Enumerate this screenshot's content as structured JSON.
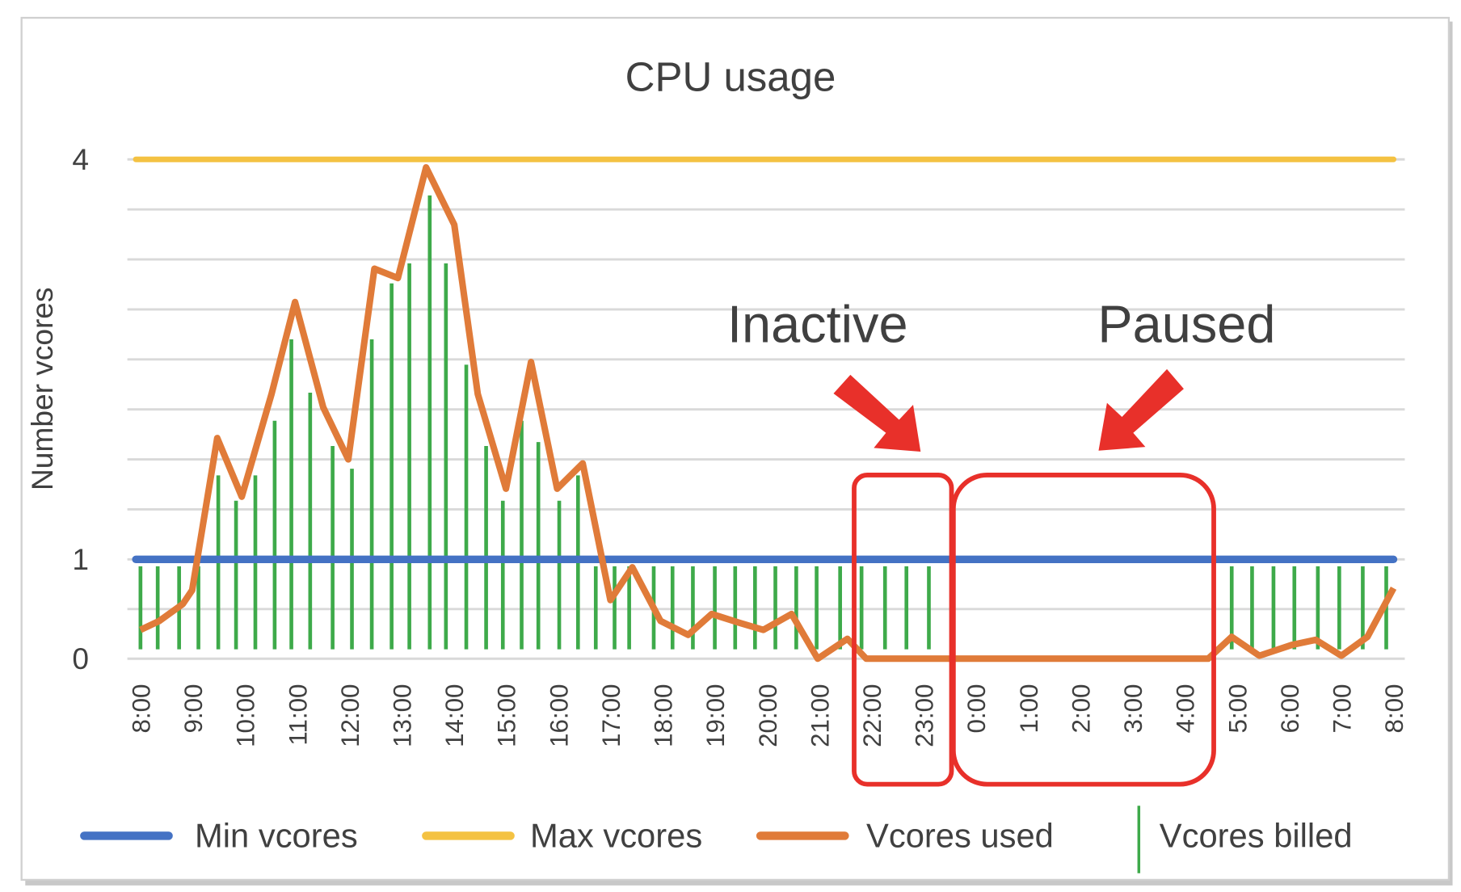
{
  "chart_data": {
    "type": "line",
    "title": "CPU usage",
    "ylabel": "Number vcores",
    "xlabel": "",
    "x_unit": "hours since 8:00",
    "xlim": [
      0,
      24
    ],
    "ylim": [
      0,
      4
    ],
    "y_ticks": [
      {
        "value": 0,
        "label": "0"
      },
      {
        "value": 1,
        "label": "1"
      },
      {
        "value": 4,
        "label": "4"
      }
    ],
    "y_gridlines": [
      0,
      0.5,
      1,
      1.375,
      1.75,
      2.125,
      2.5,
      2.875,
      3.25,
      3.625,
      4
    ],
    "x_tick_labels": [
      "8:00",
      "9:00",
      "10:00",
      "11:00",
      "12:00",
      "13:00",
      "14:00",
      "15:00",
      "16:00",
      "17:00",
      "18:00",
      "19:00",
      "20:00",
      "21:00",
      "22:00",
      "23:00",
      "0:00",
      "1:00",
      "2:00",
      "3:00",
      "4:00",
      "5:00",
      "6:00",
      "7:00",
      "8:00"
    ],
    "grid": true,
    "legend_position": "bottom",
    "series": [
      {
        "name": "Min vcores",
        "type": "line",
        "color": "#4472C4",
        "x": [
          0,
          24
        ],
        "values": [
          1,
          1
        ]
      },
      {
        "name": "Max vcores",
        "type": "line",
        "color": "#F4C242",
        "x": [
          0,
          24
        ],
        "values": [
          4,
          4
        ]
      },
      {
        "name": "Vcores used",
        "type": "line",
        "color": "#E07B39",
        "x": [
          0,
          0.36,
          0.81,
          0.99,
          1.47,
          1.94,
          2.51,
          2.96,
          3.5,
          3.98,
          4.48,
          4.93,
          5.47,
          6.01,
          6.46,
          7.0,
          7.48,
          7.98,
          8.47,
          9.0,
          9.42,
          9.96,
          10.49,
          10.94,
          11.48,
          11.93,
          12.47,
          12.97,
          13.54,
          13.9,
          20.45,
          20.9,
          21.43,
          22.06,
          22.51,
          23.0,
          23.5,
          24
        ],
        "values": [
          0.29,
          0.38,
          0.55,
          0.69,
          1.91,
          1.47,
          2.24,
          2.93,
          2.14,
          1.75,
          3.18,
          3.11,
          3.94,
          3.51,
          2.24,
          1.53,
          2.48,
          1.53,
          1.72,
          0.59,
          0.92,
          0.38,
          0.24,
          0.45,
          0.36,
          0.29,
          0.45,
          0,
          0.2,
          0,
          0,
          0.22,
          0.03,
          0.14,
          0.19,
          0.03,
          0.22,
          0.71
        ]
      },
      {
        "name": "Vcores billed",
        "type": "bar",
        "color": "#3EAA4A",
        "x": [
          0,
          0.33,
          0.74,
          1.11,
          1.49,
          1.83,
          2.2,
          2.57,
          2.89,
          3.25,
          3.68,
          4.05,
          4.43,
          4.81,
          5.15,
          5.54,
          5.85,
          6.24,
          6.62,
          6.94,
          7.3,
          7.62,
          8.02,
          8.38,
          8.72,
          9.08,
          9.36,
          9.83,
          10.19,
          10.58,
          11.0,
          11.39,
          11.77,
          12.16,
          12.56,
          12.95,
          13.4,
          13.81,
          14.26,
          14.67,
          15.1,
          20.9,
          21.29,
          21.7,
          22.1,
          22.55,
          22.96,
          23.41,
          23.86
        ],
        "values": [
          0.93,
          0.93,
          0.93,
          0.93,
          1.63,
          1.44,
          1.63,
          2.04,
          2.65,
          2.25,
          1.85,
          1.68,
          2.65,
          3.07,
          3.22,
          3.73,
          3.22,
          2.46,
          1.85,
          1.44,
          2.04,
          1.88,
          1.44,
          1.63,
          0.93,
          0.93,
          0.93,
          0.93,
          0.93,
          0.93,
          0.93,
          0.93,
          0.93,
          0.93,
          0.93,
          0.93,
          0.93,
          0.93,
          0.93,
          0.93,
          0.93,
          0.93,
          0.93,
          0.93,
          0.93,
          0.93,
          0.93,
          0.93,
          0.93
        ]
      }
    ],
    "annotations": [
      {
        "text": "Inactive",
        "color": "#E8302A",
        "x_range": [
          13.9,
          15.7
        ]
      },
      {
        "text": "Paused",
        "color": "#E8302A",
        "x_range": [
          15.7,
          20.45
        ]
      }
    ]
  }
}
